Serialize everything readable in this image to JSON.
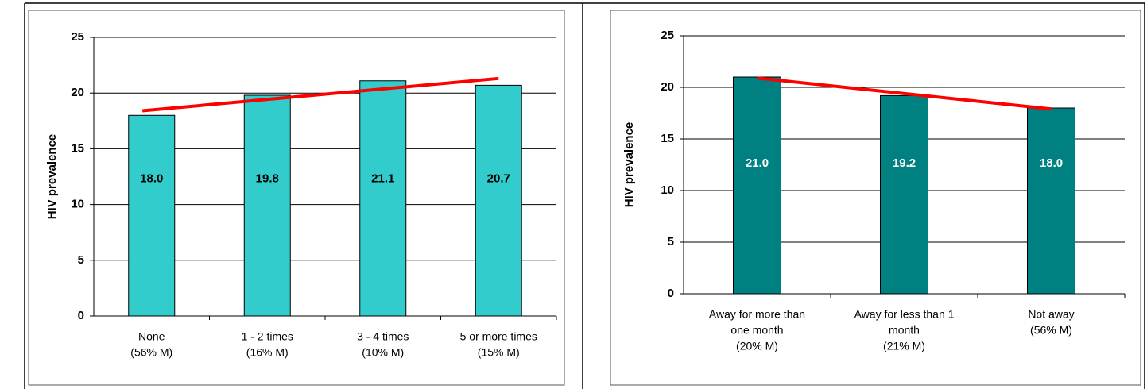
{
  "chart_data": [
    {
      "type": "bar",
      "y_label": "HIV prevalence",
      "categories": [
        [
          "None",
          "(56% M)"
        ],
        [
          "1 - 2 times",
          "(16% M)"
        ],
        [
          "3 - 4 times",
          "(10% M)"
        ],
        [
          "5 or more times",
          "(15% M)"
        ]
      ],
      "values": [
        18,
        19.8,
        21.1,
        20.7
      ],
      "value_labels": [
        "18.0",
        "19.8",
        "21.1",
        "20.7"
      ],
      "color": "#33cccc",
      "label_color": "#000000",
      "ylim": [
        0,
        25
      ],
      "yticks": [
        0,
        5,
        10,
        15,
        20,
        25
      ],
      "grid": true,
      "trendline": true,
      "trendline_color": "#ff0000"
    },
    {
      "type": "bar",
      "y_label": "HIV prevalence",
      "categories": [
        [
          "Away for more than",
          "one month",
          "(20% M)"
        ],
        [
          "Away for less than 1",
          "month",
          "(21% M)"
        ],
        [
          "Not away",
          "(56% M)"
        ]
      ],
      "values": [
        21,
        19.2,
        18
      ],
      "value_labels": [
        "21.0",
        "19.2",
        "18.0"
      ],
      "color": "#008080",
      "label_color": "#ffffff",
      "ylim": [
        0,
        25
      ],
      "yticks": [
        0,
        5,
        10,
        15,
        20,
        25
      ],
      "grid": true,
      "trendline": true,
      "trendline_color": "#ff0000"
    }
  ]
}
